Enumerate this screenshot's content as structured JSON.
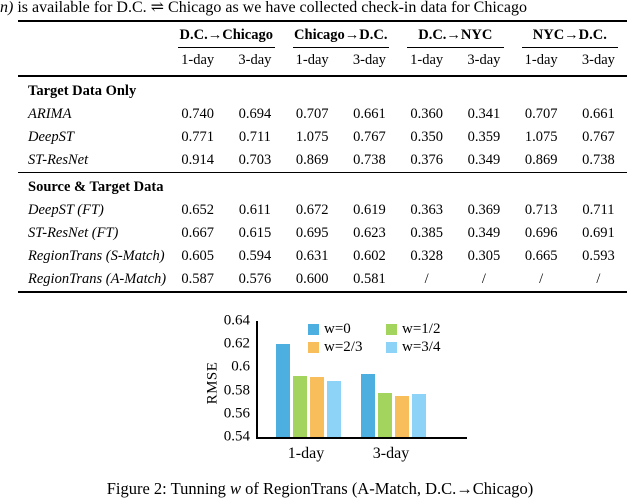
{
  "top_text": {
    "italic_fragment": "n)",
    "text": " is available for D.C. ⇌ Chicago as we have collected check-in data for Chicago"
  },
  "table": {
    "col_groups": [
      {
        "label": "D.C.→Chicago"
      },
      {
        "label": "Chicago→D.C."
      },
      {
        "label": "D.C.→NYC"
      },
      {
        "label": "NYC→D.C."
      }
    ],
    "sub_headers": [
      "1-day",
      "3-day",
      "1-day",
      "3-day",
      "1-day",
      "3-day",
      "1-day",
      "3-day"
    ],
    "sections": [
      {
        "title": "Target Data Only",
        "rows": [
          {
            "label": "ARIMA",
            "values": [
              "0.740",
              "0.694",
              "0.707",
              "0.661",
              "0.360",
              "0.341",
              "0.707",
              "0.661"
            ]
          },
          {
            "label": "DeepST",
            "values": [
              "0.771",
              "0.711",
              "1.075",
              "0.767",
              "0.350",
              "0.359",
              "1.075",
              "0.767"
            ]
          },
          {
            "label": "ST-ResNet",
            "values": [
              "0.914",
              "0.703",
              "0.869",
              "0.738",
              "0.376",
              "0.349",
              "0.869",
              "0.738"
            ]
          }
        ]
      },
      {
        "title": "Source & Target Data",
        "rows": [
          {
            "label": "DeepST (FT)",
            "values": [
              "0.652",
              "0.611",
              "0.672",
              "0.619",
              "0.363",
              "0.369",
              "0.713",
              "0.711"
            ]
          },
          {
            "label": "ST-ResNet (FT)",
            "values": [
              "0.667",
              "0.615",
              "0.695",
              "0.623",
              "0.385",
              "0.349",
              "0.696",
              "0.691"
            ]
          },
          {
            "label": "RegionTrans (S-Match)",
            "values": [
              "0.605",
              "0.594",
              "0.631",
              "0.602",
              "0.328",
              "0.305",
              "0.665",
              "0.593"
            ]
          },
          {
            "label": "RegionTrans (A-Match)",
            "values": [
              "0.587",
              "0.576",
              "0.600",
              "0.581",
              "/",
              "/",
              "/",
              "/"
            ]
          }
        ]
      }
    ]
  },
  "chart_data": {
    "type": "bar",
    "title": "",
    "categories": [
      "1-day",
      "3-day"
    ],
    "series": [
      {
        "name": "w=0",
        "color": "#4DAFDF",
        "values": [
          0.62,
          0.594
        ]
      },
      {
        "name": "w=1/2",
        "color": "#A3D45E",
        "values": [
          0.593,
          0.578
        ]
      },
      {
        "name": "w=2/3",
        "color": "#F8BE5C",
        "values": [
          0.592,
          0.575
        ]
      },
      {
        "name": "w=3/4",
        "color": "#8DD3F7",
        "values": [
          0.588,
          0.577
        ]
      }
    ],
    "xlabel": "",
    "ylabel": "RMSE",
    "ylim": [
      0.54,
      0.64
    ],
    "yticks": [
      "0.64",
      "0.62",
      "0.6",
      "0.58",
      "0.56",
      "0.54"
    ],
    "grid": false,
    "legend_position": "top-inside"
  },
  "caption": {
    "prefix": "Figure 2: Tunning ",
    "math_var": "w",
    "suffix": " of RegionTrans (A-Match, D.C.→Chicago)"
  }
}
